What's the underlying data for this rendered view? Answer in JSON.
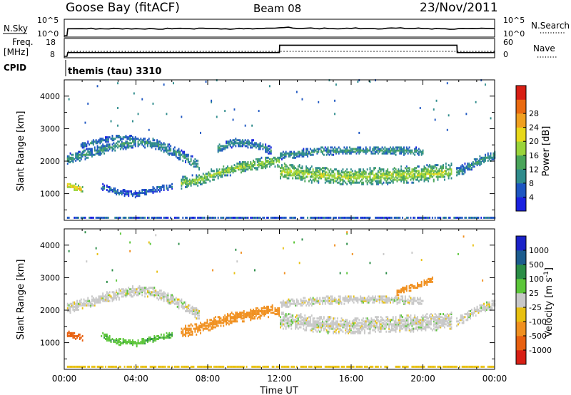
{
  "header": {
    "station": "Goose Bay (fitACF)",
    "beam": "Beam 08",
    "date": "23/Nov/2011"
  },
  "chart_data": [
    {
      "type": "line",
      "panel": "noise",
      "left_label": "N.Sky",
      "right_label": "N.Search",
      "left_ticks": [
        "10^5",
        "10^0"
      ],
      "right_ticks": [
        "10^5",
        "10^0"
      ],
      "scale": "log",
      "ylim": [
        1,
        100000
      ],
      "series": [
        {
          "name": "N.Sky",
          "style": "solid",
          "x": [
            0,
            0.15,
            0.2,
            1,
            2,
            3,
            4,
            5,
            6,
            7,
            8,
            9,
            10,
            11,
            12,
            13,
            14,
            15,
            16,
            17,
            18,
            19,
            20,
            21,
            22,
            23,
            24
          ],
          "y": [
            1,
            1,
            200,
            220,
            210,
            230,
            220,
            200,
            190,
            210,
            230,
            200,
            190,
            210,
            450,
            260,
            240,
            220,
            250,
            230,
            300,
            260,
            220,
            200,
            230,
            210,
            200
          ]
        }
      ]
    },
    {
      "type": "line",
      "panel": "frequency",
      "left_label": "Freq.",
      "left_label_2": "[MHz]",
      "right_label": "Nave",
      "left_ticks": [
        "18",
        "8"
      ],
      "right_ticks": [
        "60",
        "0"
      ],
      "ylim": [
        8,
        18
      ],
      "series": [
        {
          "name": "Freq.",
          "style": "solid",
          "x": [
            0,
            0.15,
            0.2,
            12,
            12.01,
            21.9,
            21.91,
            24
          ],
          "y": [
            8,
            8,
            10.3,
            10.3,
            14.8,
            14.8,
            10.3,
            10.3
          ]
        },
        {
          "name": "Nave",
          "style": "dotted",
          "x": [
            0.2,
            24
          ],
          "y": [
            11,
            11
          ]
        }
      ]
    },
    {
      "type": "text",
      "panel": "cpid",
      "label": "CPID",
      "program": "themis (tau) 3310"
    },
    {
      "type": "heatmap",
      "panel": "power",
      "ylabel": "Slant Range [km]",
      "xlim": [
        0,
        24
      ],
      "ylim": [
        180,
        4500
      ],
      "y_ticks": [
        1000,
        2000,
        3000,
        4000
      ],
      "colorbar": {
        "label": "Power [dB]",
        "ticks": [
          4,
          8,
          12,
          16,
          20,
          24,
          28
        ],
        "range": [
          0,
          32
        ],
        "colors": [
          "#1a22e0",
          "#1d56c2",
          "#2f8c8c",
          "#4aa55a",
          "#9ad43a",
          "#e8d81a",
          "#f0a020",
          "#ea6a10",
          "#d81f14"
        ]
      },
      "bands": [
        {
          "x": [
            0.0,
            1.0,
            2.0,
            3.0,
            4.0,
            5.0,
            6.0,
            7.0,
            7.5
          ],
          "y": [
            2000,
            2150,
            2320,
            2450,
            2570,
            2500,
            2280,
            2000,
            1800
          ],
          "w": 320,
          "pmid": 9
        },
        {
          "x": [
            0.9,
            2.0,
            3.0,
            4.0
          ],
          "y": [
            2450,
            2600,
            2700,
            2650
          ],
          "w": 180,
          "pmid": 7
        },
        {
          "x": [
            6.5,
            7.5,
            8.5,
            9.5,
            10.5,
            11.5,
            12.0
          ],
          "y": [
            1300,
            1400,
            1600,
            1750,
            1850,
            1950,
            1950
          ],
          "w": 360,
          "pmid": 14
        },
        {
          "x": [
            12.0,
            13.0,
            14.0,
            15.0,
            16.0,
            17.0,
            18.0,
            19.0,
            20.0,
            21.0,
            21.6
          ],
          "y": [
            1650,
            1600,
            1550,
            1500,
            1480,
            1500,
            1520,
            1550,
            1580,
            1620,
            1650
          ],
          "w": 520,
          "pmid": 15
        },
        {
          "x": [
            12.0,
            14.0,
            16.0,
            18.0,
            20.0
          ],
          "y": [
            2150,
            2250,
            2300,
            2300,
            2250
          ],
          "w": 260,
          "pmid": 9
        },
        {
          "x": [
            8.5,
            9.5,
            10.5,
            11.5
          ],
          "y": [
            2350,
            2550,
            2500,
            2300
          ],
          "w": 260,
          "pmid": 8
        },
        {
          "x": [
            0.0,
            0.3,
            0.7,
            1.0
          ],
          "y": [
            1250,
            1200,
            1150,
            1100
          ],
          "w": 200,
          "pmid": 20
        },
        {
          "x": [
            2.0,
            3.0,
            4.0,
            5.0,
            6.0
          ],
          "y": [
            1200,
            1000,
            950,
            1100,
            1200
          ],
          "w": 200,
          "pmid": 6
        },
        {
          "x": [
            21.8,
            22.5,
            23.2,
            24.0
          ],
          "y": [
            1600,
            1800,
            2000,
            2150
          ],
          "w": 300,
          "pmid": 9
        },
        {
          "x": [
            0.0,
            24.0
          ],
          "y": [
            230,
            230
          ],
          "w": 80,
          "pmid": 5
        }
      ]
    },
    {
      "type": "heatmap",
      "panel": "velocity",
      "ylabel": "Slant Range [km]",
      "xlabel": "Time UT",
      "xlim": [
        0,
        24
      ],
      "x_ticks": [
        "00:00",
        "04:00",
        "08:00",
        "12:00",
        "16:00",
        "20:00",
        "00:00"
      ],
      "ylim": [
        180,
        4500
      ],
      "y_ticks": [
        1000,
        2000,
        3000,
        4000
      ],
      "colorbar": {
        "label": "Velocity [m s^-1]",
        "ticks": [
          "1000",
          "500",
          "100",
          "25",
          "-25",
          "-100",
          "-500",
          "-1000"
        ],
        "colors": [
          "#1a22c8",
          "#1c5c8e",
          "#2a8d46",
          "#5cc63a",
          "#c8c8c8",
          "#e8c010",
          "#f09020",
          "#e86010",
          "#d81f14"
        ]
      },
      "bands": [
        {
          "x": [
            0.0,
            1.0,
            2.0,
            3.0,
            4.0,
            5.0,
            6.0,
            7.0,
            7.5
          ],
          "y": [
            2000,
            2150,
            2320,
            2450,
            2570,
            2500,
            2280,
            2000,
            1800
          ],
          "w": 320,
          "vmid": 0
        },
        {
          "x": [
            6.5,
            7.5,
            8.5,
            9.5,
            10.5,
            11.5,
            12.0
          ],
          "y": [
            1300,
            1400,
            1600,
            1750,
            1850,
            1950,
            1950
          ],
          "w": 360,
          "vmid": -200
        },
        {
          "x": [
            12.0,
            13.0,
            14.0,
            15.0,
            16.0,
            17.0,
            18.0,
            19.0,
            20.0,
            21.0,
            21.6
          ],
          "y": [
            1650,
            1600,
            1550,
            1500,
            1480,
            1500,
            1520,
            1550,
            1580,
            1620,
            1650
          ],
          "w": 520,
          "vmid": 0
        },
        {
          "x": [
            12.0,
            14.0,
            16.0,
            18.0,
            20.0
          ],
          "y": [
            2150,
            2250,
            2300,
            2300,
            2250
          ],
          "w": 260,
          "vmid": 0
        },
        {
          "x": [
            0.0,
            0.3,
            0.7,
            1.0
          ],
          "y": [
            1250,
            1200,
            1150,
            1100
          ],
          "w": 200,
          "vmid": -900
        },
        {
          "x": [
            2.0,
            3.0,
            4.0,
            5.0,
            6.0
          ],
          "y": [
            1200,
            1000,
            950,
            1100,
            1200
          ],
          "w": 200,
          "vmid": 80
        },
        {
          "x": [
            18.5,
            19.5,
            20.5
          ],
          "y": [
            2500,
            2700,
            2900
          ],
          "w": 200,
          "vmid": -300
        },
        {
          "x": [
            21.8,
            22.5,
            23.2,
            24.0
          ],
          "y": [
            1600,
            1800,
            2000,
            2150
          ],
          "w": 300,
          "vmid": 0
        },
        {
          "x": [
            0.0,
            24.0
          ],
          "y": [
            230,
            230
          ],
          "w": 80,
          "vmid": -60
        }
      ]
    }
  ]
}
